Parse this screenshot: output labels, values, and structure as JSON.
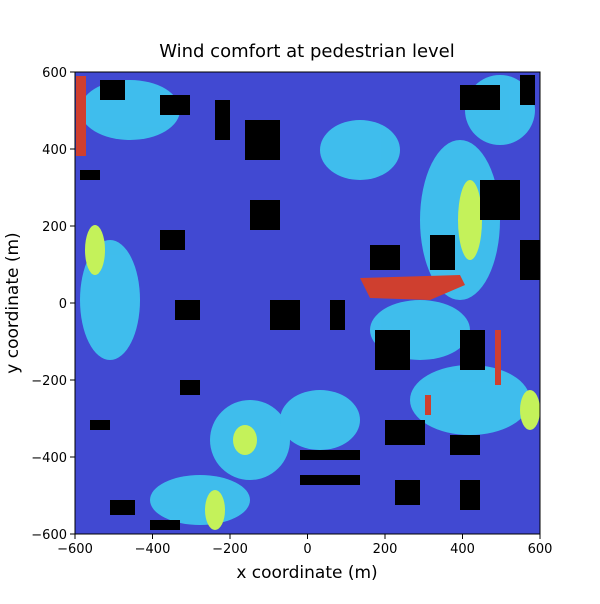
{
  "chart_data": {
    "type": "contour",
    "title": "Wind comfort at pedestrian level",
    "x_label": "x coordinate (m)",
    "y_label": "y coordinate (m)",
    "xlim": [
      -600,
      600
    ],
    "ylim": [
      -600,
      600
    ],
    "xticks": [
      {
        "value": -600,
        "label": "−600"
      },
      {
        "value": -400,
        "label": "−400"
      },
      {
        "value": -200,
        "label": "−200"
      },
      0,
      200,
      400,
      600
    ],
    "yticks": [
      {
        "value": -600,
        "label": "−600"
      },
      {
        "value": -400,
        "label": "−400"
      },
      {
        "value": -200,
        "label": "−200"
      },
      0,
      200,
      400,
      600
    ]
  }
}
